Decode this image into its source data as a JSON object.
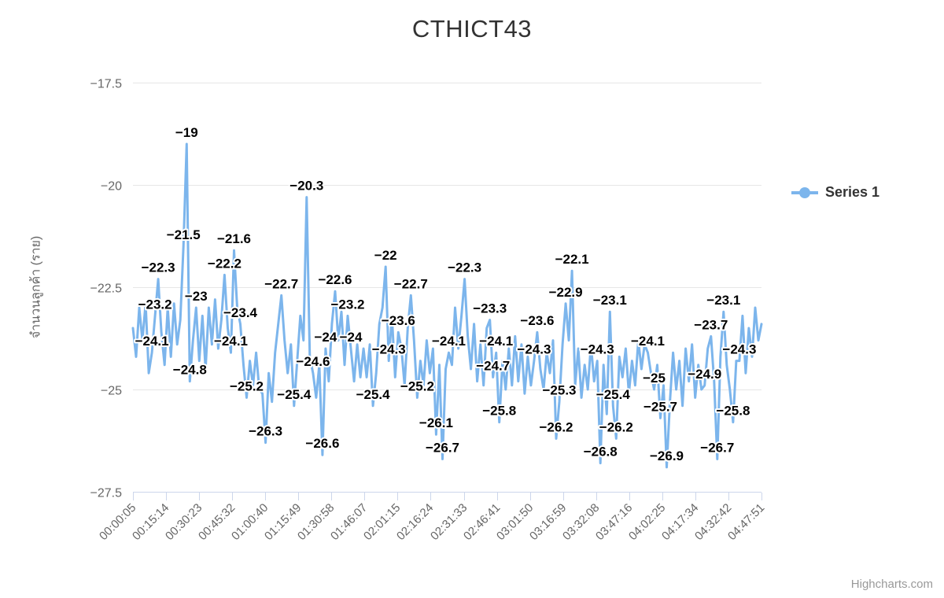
{
  "title": "CTHICT43",
  "legend": {
    "series_label": "Series 1"
  },
  "credit": "Highcharts.com",
  "y_axis": {
    "title": "จำนวนลูกค้า (ราย)",
    "tick_labels": [
      "−17.5",
      "−20",
      "−22.5",
      "−25",
      "−27.5"
    ],
    "tick_values": [
      -17.5,
      -20,
      -22.5,
      -25,
      -27.5
    ]
  },
  "x_axis": {
    "tick_labels": [
      "00:00:05",
      "00:15:14",
      "00:30:23",
      "00:45:32",
      "01:00:40",
      "01:15:49",
      "01:30:58",
      "01:46:07",
      "02:01:15",
      "02:16:24",
      "02:31:33",
      "02:46:41",
      "03:01:50",
      "03:16:59",
      "03:32:08",
      "03:47:16",
      "04:02:25",
      "04:17:34",
      "04:32:42",
      "04:47:51"
    ]
  },
  "colors": {
    "series": "#7cb5ec",
    "grid": "#e6e6e6",
    "axis_line": "#ccd6eb",
    "title_text": "#333333",
    "axis_text": "#666666",
    "label_text": "#000000",
    "label_halo": "#ffffff",
    "credit_text": "#999999"
  },
  "chart_data": {
    "type": "line",
    "title": "CTHICT43",
    "xlabel": "",
    "ylabel": "จำนวนลูกค้า (ราย)",
    "ylim": [
      -27.5,
      -17.5
    ],
    "grid": true,
    "legend_position": "right",
    "x_tick_labels": [
      "00:00:05",
      "00:15:14",
      "00:30:23",
      "00:45:32",
      "01:00:40",
      "01:15:49",
      "01:30:58",
      "01:46:07",
      "02:01:15",
      "02:16:24",
      "02:31:33",
      "02:46:41",
      "03:01:50",
      "03:16:59",
      "03:32:08",
      "03:47:16",
      "04:02:25",
      "04:17:34",
      "04:32:42",
      "04:47:51"
    ],
    "series": [
      {
        "name": "Series 1",
        "color": "#7cb5ec",
        "values": [
          -23.5,
          -24.2,
          -23.0,
          -23.8,
          -22.9,
          -24.6,
          -24.1,
          -23.2,
          -22.3,
          -23.6,
          -24.4,
          -23.0,
          -24.2,
          -22.9,
          -23.9,
          -23.3,
          -21.5,
          -19.0,
          -24.8,
          -23.8,
          -23.0,
          -24.3,
          -23.2,
          -24.5,
          -23.0,
          -23.9,
          -22.8,
          -24.0,
          -23.3,
          -22.2,
          -23.5,
          -24.1,
          -21.6,
          -23.0,
          -23.4,
          -24.4,
          -25.2,
          -24.3,
          -24.9,
          -24.1,
          -25.0,
          -25.1,
          -26.3,
          -24.6,
          -25.3,
          -24.1,
          -23.4,
          -22.7,
          -23.8,
          -24.6,
          -23.9,
          -25.4,
          -24.3,
          -23.2,
          -23.8,
          -20.3,
          -24.2,
          -24.6,
          -25.2,
          -24.4,
          -26.6,
          -24.0,
          -24.8,
          -23.4,
          -22.6,
          -23.8,
          -23.1,
          -24.4,
          -23.2,
          -24.0,
          -24.8,
          -23.9,
          -24.7,
          -24.0,
          -24.7,
          -23.9,
          -25.4,
          -24.6,
          -23.4,
          -23.0,
          -22.0,
          -24.3,
          -23.2,
          -24.7,
          -23.6,
          -24.0,
          -24.9,
          -23.5,
          -22.7,
          -23.8,
          -25.2,
          -24.3,
          -24.9,
          -23.8,
          -24.6,
          -24.0,
          -26.1,
          -24.4,
          -26.7,
          -24.5,
          -24.1,
          -24.4,
          -23.0,
          -24.0,
          -23.2,
          -22.3,
          -23.7,
          -24.5,
          -23.4,
          -24.8,
          -23.9,
          -24.9,
          -23.5,
          -23.3,
          -24.7,
          -24.1,
          -25.8,
          -24.3,
          -25.0,
          -24.0,
          -24.9,
          -23.7,
          -24.8,
          -23.9,
          -25.1,
          -24.2,
          -24.9,
          -24.3,
          -23.6,
          -24.5,
          -25.0,
          -24.1,
          -24.6,
          -23.8,
          -26.2,
          -25.3,
          -23.9,
          -22.9,
          -23.8,
          -22.1,
          -24.9,
          -24.0,
          -25.2,
          -24.4,
          -25.0,
          -23.9,
          -24.8,
          -24.3,
          -26.8,
          -24.4,
          -25.6,
          -23.1,
          -25.4,
          -26.2,
          -24.2,
          -24.7,
          -24.0,
          -25.1,
          -24.3,
          -24.9,
          -23.8,
          -24.5,
          -23.9,
          -24.1,
          -24.6,
          -25.0,
          -24.4,
          -25.7,
          -24.9,
          -26.9,
          -25.3,
          -24.1,
          -25.0,
          -24.3,
          -25.4,
          -24.0,
          -24.8,
          -23.9,
          -25.2,
          -24.4,
          -25.0,
          -24.9,
          -24.0,
          -23.7,
          -24.8,
          -26.7,
          -24.2,
          -23.1,
          -24.4,
          -25.0,
          -25.8,
          -24.3,
          -24.3,
          -23.2,
          -24.6,
          -23.5,
          -24.2,
          -23.0,
          -23.8,
          -23.4
        ]
      }
    ],
    "point_labels": [
      {
        "i": 6,
        "text": "−24.1"
      },
      {
        "i": 7,
        "text": "−23.2"
      },
      {
        "i": 8,
        "text": "−22.3"
      },
      {
        "i": 16,
        "text": "−21.5"
      },
      {
        "i": 17,
        "text": "−19"
      },
      {
        "i": 18,
        "text": "−24.8"
      },
      {
        "i": 20,
        "text": "−23"
      },
      {
        "i": 29,
        "text": "−22.2"
      },
      {
        "i": 31,
        "text": "−24.1"
      },
      {
        "i": 32,
        "text": "−21.6"
      },
      {
        "i": 34,
        "text": "−23.4"
      },
      {
        "i": 36,
        "text": "−25.2"
      },
      {
        "i": 42,
        "text": "−26.3"
      },
      {
        "i": 47,
        "text": "−22.7"
      },
      {
        "i": 51,
        "text": "−25.4"
      },
      {
        "i": 55,
        "text": "−20.3"
      },
      {
        "i": 57,
        "text": "−24.6"
      },
      {
        "i": 60,
        "text": "−26.6"
      },
      {
        "i": 61,
        "text": "−24"
      },
      {
        "i": 64,
        "text": "−22.6"
      },
      {
        "i": 68,
        "text": "−23.2"
      },
      {
        "i": 69,
        "text": "−24"
      },
      {
        "i": 76,
        "text": "−25.4"
      },
      {
        "i": 80,
        "text": "−22"
      },
      {
        "i": 81,
        "text": "−24.3"
      },
      {
        "i": 84,
        "text": "−23.6"
      },
      {
        "i": 88,
        "text": "−22.7"
      },
      {
        "i": 90,
        "text": "−25.2"
      },
      {
        "i": 96,
        "text": "−26.1"
      },
      {
        "i": 98,
        "text": "−26.7"
      },
      {
        "i": 100,
        "text": "−24.1"
      },
      {
        "i": 105,
        "text": "−22.3"
      },
      {
        "i": 113,
        "text": "−23.3"
      },
      {
        "i": 114,
        "text": "−24.7"
      },
      {
        "i": 115,
        "text": "−24.1"
      },
      {
        "i": 116,
        "text": "−25.8"
      },
      {
        "i": 127,
        "text": "−24.3"
      },
      {
        "i": 128,
        "text": "−23.6"
      },
      {
        "i": 134,
        "text": "−26.2"
      },
      {
        "i": 135,
        "text": "−25.3"
      },
      {
        "i": 137,
        "text": "−22.9"
      },
      {
        "i": 139,
        "text": "−22.1"
      },
      {
        "i": 147,
        "text": "−24.3"
      },
      {
        "i": 148,
        "text": "−26.8"
      },
      {
        "i": 151,
        "text": "−23.1"
      },
      {
        "i": 152,
        "text": "−25.4"
      },
      {
        "i": 153,
        "text": "−26.2"
      },
      {
        "i": 163,
        "text": "−24.1"
      },
      {
        "i": 165,
        "text": "−25"
      },
      {
        "i": 167,
        "text": "−25.7"
      },
      {
        "i": 169,
        "text": "−26.9"
      },
      {
        "i": 181,
        "text": "−24.9"
      },
      {
        "i": 183,
        "text": "−23.7"
      },
      {
        "i": 185,
        "text": "−26.7"
      },
      {
        "i": 187,
        "text": "−23.1"
      },
      {
        "i": 190,
        "text": "−25.8"
      },
      {
        "i": 192,
        "text": "−24.3"
      }
    ]
  }
}
